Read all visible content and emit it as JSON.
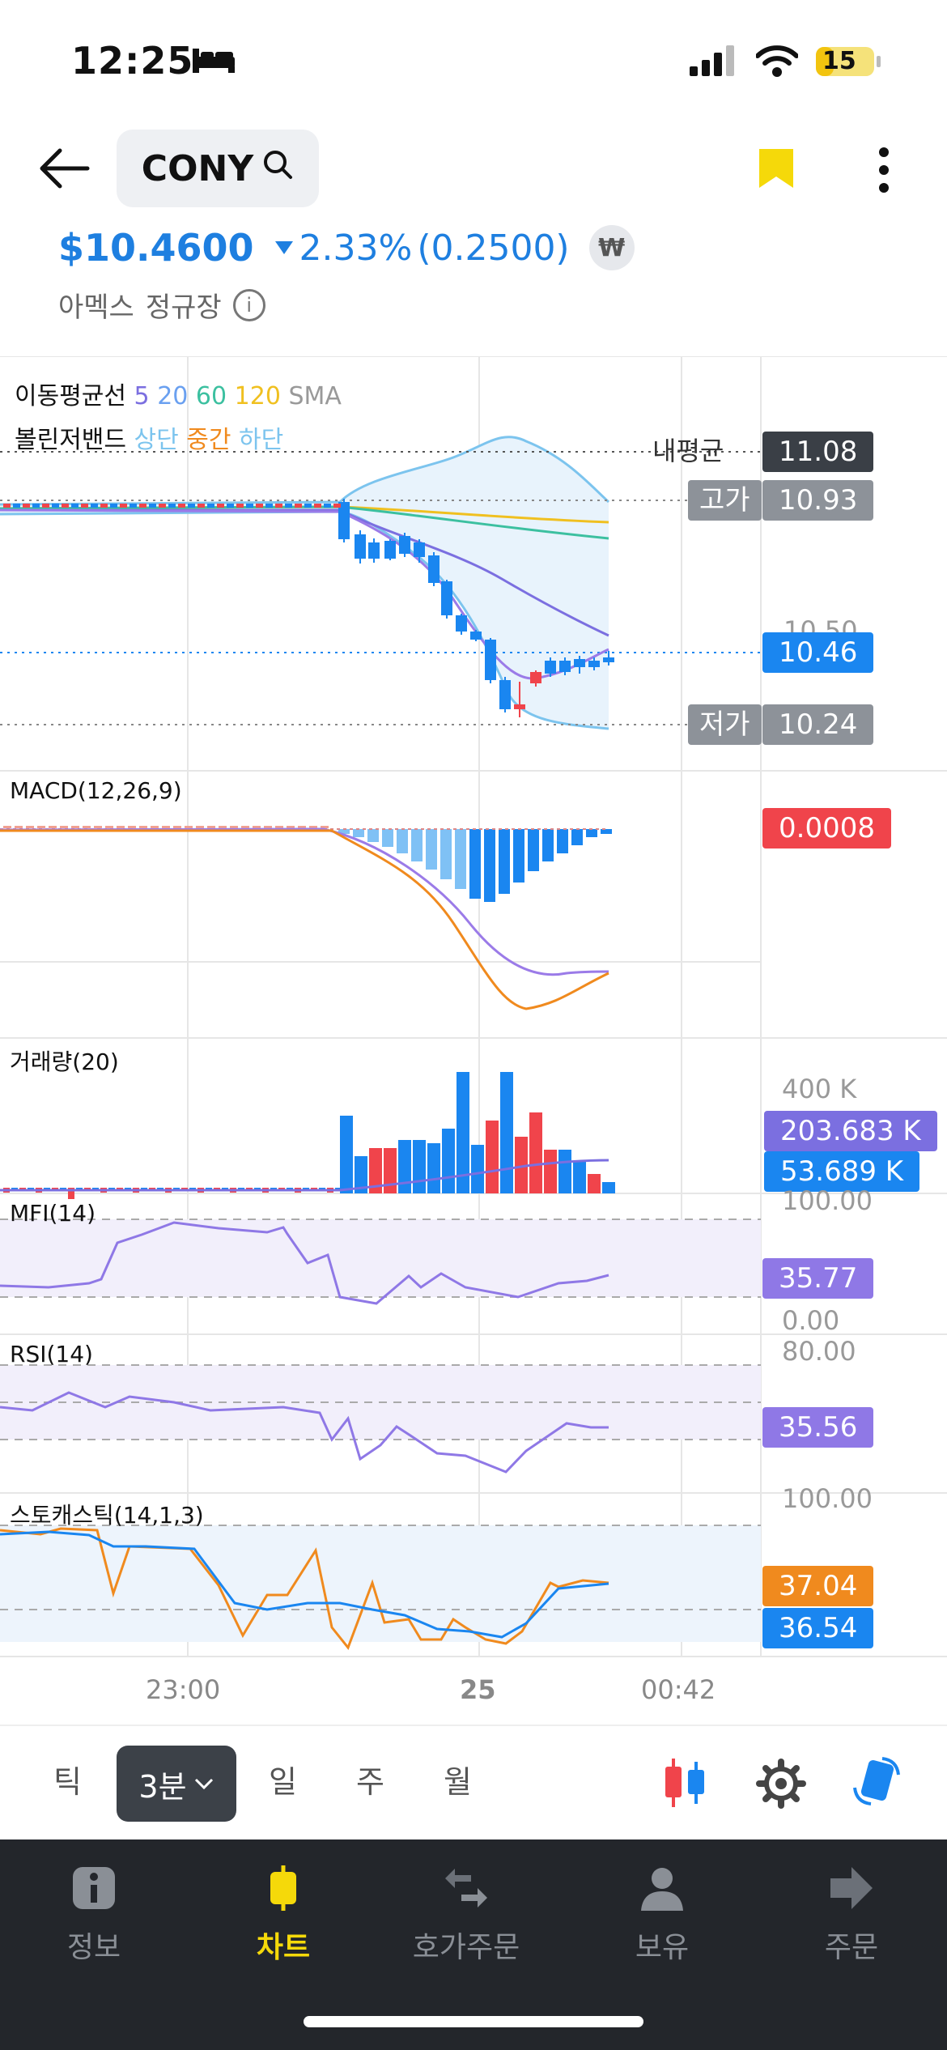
{
  "status_bar": {
    "time": "12:25",
    "battery": "15"
  },
  "header": {
    "ticker": "CONY",
    "price": "$10.4600",
    "change_pct": "2.33%",
    "change_abs": "(0.2500)",
    "currency_badge": "₩",
    "exchange": "아멕스",
    "session": "정규장"
  },
  "indicators": {
    "ma_label": "이동평균선",
    "ma_periods": [
      "5",
      "20",
      "60",
      "120"
    ],
    "ma_type": "SMA",
    "bb_label": "볼린저밴드",
    "bb_upper": "상단",
    "bb_mid": "중간",
    "bb_lower": "하단",
    "macd_label": "MACD(12,26,9)",
    "volume_label": "거래량(20)",
    "mfi_label": "MFI(14)",
    "rsi_label": "RSI(14)",
    "stoch_label": "스토캐스틱(14,1,3)"
  },
  "price_tags": {
    "avg_label": "내평균",
    "avg_value": "11.08",
    "high_label": "고가",
    "high_value": "10.93",
    "current_value": "10.46",
    "low_label": "저가",
    "low_value": "10.24",
    "hidden_tick": "10.50"
  },
  "panel_values": {
    "macd": "0.0008",
    "volume_axis": "400 K",
    "volume_ma": "203.683 K",
    "volume_current": "53.689 K",
    "mfi_top": "100.00",
    "mfi_value": "35.77",
    "mfi_bottom": "0.00",
    "rsi_top": "80.00",
    "rsi_value": "35.56",
    "stoch_top": "100.00",
    "stoch_k": "37.04",
    "stoch_d": "36.54"
  },
  "time_axis": [
    "23:00",
    "25",
    "00:42"
  ],
  "periods": {
    "tick": "틱",
    "selected": "3분",
    "day": "일",
    "week": "주",
    "month": "월"
  },
  "tabs": [
    {
      "label": "정보",
      "icon": "info-icon"
    },
    {
      "label": "차트",
      "icon": "candle-icon"
    },
    {
      "label": "호가주문",
      "icon": "exchange-arrows-icon"
    },
    {
      "label": "보유",
      "icon": "person-icon"
    },
    {
      "label": "주문",
      "icon": "arrow-right-icon"
    }
  ],
  "colors": {
    "up": "#f0444b",
    "down": "#1a86f0",
    "accent": "#1e7fe0",
    "ma5": "#7b6fe0",
    "ma20": "#6aa0f0",
    "ma60": "#3cc0a0",
    "ma120": "#f0c020",
    "bb": "#7cc4ee",
    "macd_line": "#9b7be8",
    "signal_line": "#f08a1e",
    "stoch_k": "#f08a1e",
    "stoch_d": "#1a86f0",
    "tab_active": "#f5d90a"
  },
  "chart_data": {
    "type": "candlestick",
    "price_axis": {
      "current": 10.46,
      "high": 10.93,
      "low": 10.24,
      "avg_cost": 11.08
    },
    "macd_value": 0.0008,
    "volume": {
      "ma20": 203683,
      "last": 53689,
      "axis_max": 400000
    },
    "mfi": 35.77,
    "rsi": 35.56,
    "stochastic": {
      "k": 37.04,
      "d": 36.54
    },
    "x_ticks": [
      "23:00",
      "25",
      "00:42"
    ]
  }
}
